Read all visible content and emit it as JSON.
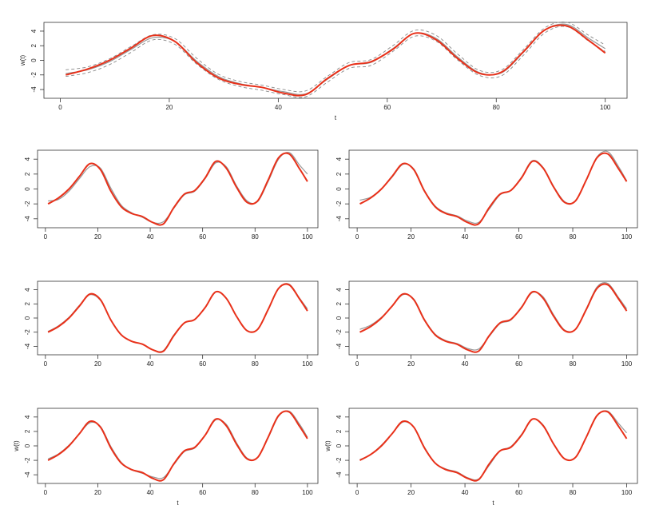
{
  "chart_data": [
    {
      "type": "line",
      "xlabel": "t",
      "ylabel": "w(t)",
      "x": [
        1,
        5,
        9,
        13,
        17,
        21,
        25,
        29,
        33,
        37,
        41,
        45,
        49,
        53,
        57,
        61,
        65,
        69,
        73,
        77,
        81,
        85,
        89,
        93,
        97,
        100
      ],
      "xlim": [
        -3,
        104
      ],
      "ylim": [
        -5.2,
        5.2
      ],
      "xticks": [
        0,
        20,
        40,
        60,
        80,
        100
      ],
      "yticks": [
        -4,
        -2,
        0,
        2,
        4
      ],
      "series": [
        {
          "color": "#888888",
          "dash": true,
          "values": [
            -1.3,
            -0.9,
            0.2,
            1.9,
            3.5,
            3.0,
            0.3,
            -1.9,
            -2.9,
            -3.4,
            -4.0,
            -4.2,
            -2.2,
            -0.3,
            0.1,
            2.0,
            4.1,
            3.4,
            0.8,
            -1.4,
            -1.3,
            1.5,
            4.5,
            5.2,
            3.4,
            2.1
          ]
        },
        {
          "color": "#888888",
          "dash": true,
          "values": [
            -2.2,
            -1.7,
            -0.6,
            1.1,
            2.8,
            2.2,
            -0.5,
            -2.6,
            -3.6,
            -4.1,
            -4.7,
            -5.0,
            -3.0,
            -1.1,
            -0.7,
            1.2,
            3.3,
            2.6,
            0.0,
            -2.1,
            -2.1,
            0.7,
            3.8,
            4.6,
            2.6,
            1.2
          ]
        },
        {
          "color": "#999999",
          "values": [
            -1.8,
            -1.3,
            -0.2,
            1.5,
            3.1,
            2.6,
            -0.1,
            -2.2,
            -3.2,
            -3.7,
            -4.3,
            -4.6,
            -2.6,
            -0.7,
            -0.3,
            1.6,
            3.7,
            3.0,
            0.4,
            -1.7,
            -1.7,
            1.1,
            4.2,
            4.9,
            3.0,
            1.6
          ]
        },
        {
          "color": "#e8311a",
          "values": [
            -2.0,
            -1.2,
            0.0,
            1.7,
            3.4,
            2.6,
            -0.3,
            -2.4,
            -3.3,
            -3.7,
            -4.5,
            -4.7,
            -2.5,
            -0.7,
            -0.2,
            1.5,
            3.7,
            2.8,
            0.2,
            -1.8,
            -1.6,
            1.2,
            4.2,
            4.7,
            2.7,
            1.0
          ]
        }
      ]
    },
    {
      "type": "line",
      "x": [
        1,
        5,
        9,
        13,
        17,
        21,
        25,
        29,
        33,
        37,
        41,
        45,
        49,
        53,
        57,
        61,
        65,
        69,
        73,
        77,
        81,
        85,
        89,
        93,
        97,
        100
      ],
      "xlim": [
        -3,
        104
      ],
      "ylim": [
        -5.2,
        5.2
      ],
      "xticks": [
        0,
        20,
        40,
        60,
        80,
        100
      ],
      "yticks": [
        -4,
        -2,
        0,
        2,
        4
      ],
      "series": [
        {
          "color": "#999999",
          "values": [
            -1.6,
            -1.4,
            -0.3,
            1.4,
            3.0,
            2.8,
            0.1,
            -2.2,
            -3.2,
            -3.8,
            -4.5,
            -4.4,
            -2.6,
            -0.8,
            -0.3,
            1.4,
            3.5,
            3.0,
            0.4,
            -1.6,
            -1.7,
            1.0,
            4.0,
            4.9,
            3.2,
            2.0
          ]
        },
        {
          "color": "#e8311a",
          "values": [
            -2.0,
            -1.2,
            0.0,
            1.7,
            3.4,
            2.6,
            -0.3,
            -2.4,
            -3.3,
            -3.7,
            -4.5,
            -4.7,
            -2.5,
            -0.7,
            -0.2,
            1.5,
            3.7,
            2.8,
            0.2,
            -1.8,
            -1.6,
            1.2,
            4.2,
            4.7,
            2.7,
            1.0
          ]
        }
      ]
    },
    {
      "type": "line",
      "x": [
        1,
        5,
        9,
        13,
        17,
        21,
        25,
        29,
        33,
        37,
        41,
        45,
        49,
        53,
        57,
        61,
        65,
        69,
        73,
        77,
        81,
        85,
        89,
        93,
        97,
        100
      ],
      "xlim": [
        -3,
        104
      ],
      "ylim": [
        -5.2,
        5.2
      ],
      "xticks": [
        0,
        20,
        40,
        60,
        80,
        100
      ],
      "yticks": [
        -4,
        -2,
        0,
        2,
        4
      ],
      "series": [
        {
          "color": "#999999",
          "values": [
            -1.5,
            -1.1,
            0.0,
            1.6,
            3.3,
            2.7,
            -0.2,
            -2.3,
            -3.2,
            -3.6,
            -4.3,
            -4.5,
            -2.7,
            -0.8,
            -0.2,
            1.6,
            3.8,
            2.9,
            0.3,
            -1.7,
            -1.6,
            1.2,
            4.3,
            5.0,
            3.0,
            1.1
          ]
        },
        {
          "color": "#e8311a",
          "values": [
            -2.0,
            -1.2,
            0.0,
            1.7,
            3.4,
            2.6,
            -0.3,
            -2.4,
            -3.3,
            -3.7,
            -4.5,
            -4.7,
            -2.5,
            -0.7,
            -0.2,
            1.5,
            3.7,
            2.8,
            0.2,
            -1.8,
            -1.6,
            1.2,
            4.2,
            4.7,
            2.7,
            1.0
          ]
        }
      ]
    },
    {
      "type": "line",
      "x": [
        1,
        5,
        9,
        13,
        17,
        21,
        25,
        29,
        33,
        37,
        41,
        45,
        49,
        53,
        57,
        61,
        65,
        69,
        73,
        77,
        81,
        85,
        89,
        93,
        97,
        100
      ],
      "xlim": [
        -3,
        104
      ],
      "ylim": [
        -5.2,
        5.2
      ],
      "xticks": [
        0,
        20,
        40,
        60,
        80,
        100
      ],
      "yticks": [
        -4,
        -2,
        0,
        2,
        4
      ],
      "series": [
        {
          "color": "#999999",
          "values": [
            -1.9,
            -1.1,
            0.1,
            1.8,
            3.3,
            2.5,
            -0.3,
            -2.4,
            -3.3,
            -3.7,
            -4.5,
            -4.6,
            -2.4,
            -0.7,
            -0.2,
            1.5,
            3.7,
            2.8,
            0.2,
            -1.8,
            -1.6,
            1.2,
            4.2,
            4.8,
            2.8,
            1.3
          ]
        },
        {
          "color": "#e8311a",
          "values": [
            -2.0,
            -1.2,
            0.0,
            1.7,
            3.4,
            2.6,
            -0.3,
            -2.4,
            -3.3,
            -3.7,
            -4.5,
            -4.7,
            -2.5,
            -0.7,
            -0.2,
            1.5,
            3.7,
            2.8,
            0.2,
            -1.8,
            -1.6,
            1.2,
            4.2,
            4.7,
            2.7,
            1.0
          ]
        }
      ]
    },
    {
      "type": "line",
      "x": [
        1,
        5,
        9,
        13,
        17,
        21,
        25,
        29,
        33,
        37,
        41,
        45,
        49,
        53,
        57,
        61,
        65,
        69,
        73,
        77,
        81,
        85,
        89,
        93,
        97,
        100
      ],
      "xlim": [
        -3,
        104
      ],
      "ylim": [
        -5.2,
        5.2
      ],
      "xticks": [
        0,
        20,
        40,
        60,
        80,
        100
      ],
      "yticks": [
        -4,
        -2,
        0,
        2,
        4
      ],
      "series": [
        {
          "color": "#999999",
          "values": [
            -1.6,
            -1.0,
            0.1,
            1.7,
            3.3,
            2.7,
            -0.2,
            -2.3,
            -3.2,
            -3.6,
            -4.3,
            -4.4,
            -2.6,
            -0.8,
            -0.3,
            1.6,
            3.6,
            3.0,
            0.4,
            -1.7,
            -1.6,
            1.3,
            4.4,
            4.9,
            2.9,
            1.3
          ]
        },
        {
          "color": "#e8311a",
          "values": [
            -2.0,
            -1.2,
            0.0,
            1.7,
            3.4,
            2.6,
            -0.3,
            -2.4,
            -3.3,
            -3.7,
            -4.5,
            -4.7,
            -2.5,
            -0.7,
            -0.2,
            1.5,
            3.7,
            2.8,
            0.2,
            -1.8,
            -1.6,
            1.2,
            4.2,
            4.7,
            2.7,
            1.0
          ]
        }
      ]
    },
    {
      "type": "line",
      "xlabel": "t",
      "ylabel": "w(t)",
      "x": [
        1,
        5,
        9,
        13,
        17,
        21,
        25,
        29,
        33,
        37,
        41,
        45,
        49,
        53,
        57,
        61,
        65,
        69,
        73,
        77,
        81,
        85,
        89,
        93,
        97,
        100
      ],
      "xlim": [
        -3,
        104
      ],
      "ylim": [
        -5.2,
        5.2
      ],
      "xticks": [
        0,
        20,
        40,
        60,
        80,
        100
      ],
      "yticks": [
        -4,
        -2,
        0,
        2,
        4
      ],
      "series": [
        {
          "color": "#999999",
          "values": [
            -1.8,
            -1.1,
            0.1,
            1.7,
            3.2,
            2.7,
            -0.1,
            -2.3,
            -3.3,
            -3.8,
            -4.3,
            -4.4,
            -2.6,
            -0.8,
            -0.3,
            1.5,
            3.6,
            3.0,
            0.4,
            -1.7,
            -1.6,
            1.1,
            4.1,
            4.8,
            3.0,
            1.2
          ]
        },
        {
          "color": "#e8311a",
          "values": [
            -2.0,
            -1.2,
            0.0,
            1.7,
            3.4,
            2.6,
            -0.3,
            -2.4,
            -3.3,
            -3.7,
            -4.5,
            -4.7,
            -2.5,
            -0.7,
            -0.2,
            1.5,
            3.7,
            2.8,
            0.2,
            -1.8,
            -1.6,
            1.2,
            4.2,
            4.7,
            2.7,
            1.0
          ]
        }
      ]
    },
    {
      "type": "line",
      "xlabel": "t",
      "ylabel": "w(t)",
      "x": [
        1,
        5,
        9,
        13,
        17,
        21,
        25,
        29,
        33,
        37,
        41,
        45,
        49,
        53,
        57,
        61,
        65,
        69,
        73,
        77,
        81,
        85,
        89,
        93,
        97,
        100
      ],
      "xlim": [
        -3,
        104
      ],
      "ylim": [
        -5.2,
        5.2
      ],
      "xticks": [
        0,
        20,
        40,
        60,
        80,
        100
      ],
      "yticks": [
        -4,
        -2,
        0,
        2,
        4
      ],
      "series": [
        {
          "color": "#999999",
          "values": [
            -1.9,
            -1.2,
            0.1,
            1.7,
            3.3,
            2.6,
            -0.2,
            -2.4,
            -3.2,
            -3.6,
            -4.4,
            -4.6,
            -2.7,
            -0.7,
            -0.1,
            1.6,
            3.7,
            2.9,
            0.2,
            -1.8,
            -1.6,
            1.2,
            4.2,
            4.8,
            3.1,
            1.8
          ]
        },
        {
          "color": "#e8311a",
          "values": [
            -2.0,
            -1.2,
            0.0,
            1.7,
            3.4,
            2.6,
            -0.3,
            -2.4,
            -3.3,
            -3.7,
            -4.5,
            -4.7,
            -2.5,
            -0.7,
            -0.2,
            1.5,
            3.7,
            2.8,
            0.2,
            -1.8,
            -1.6,
            1.2,
            4.2,
            4.7,
            2.7,
            1.0
          ]
        }
      ]
    }
  ]
}
